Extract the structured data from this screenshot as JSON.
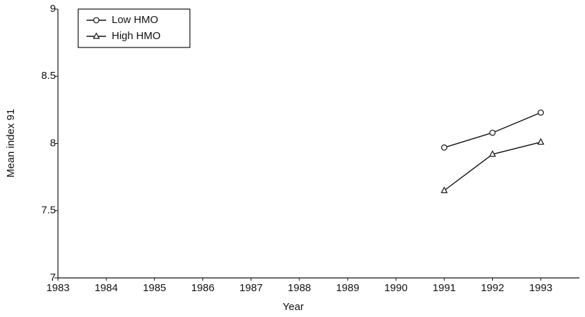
{
  "chart_data": {
    "type": "line",
    "x_label": "Year",
    "y_label": "Mean index 91",
    "x": [
      1991,
      1992,
      1993
    ],
    "series": [
      {
        "name": "Low HMO",
        "color": "#111111",
        "marker": "circle",
        "values": [
          7.97,
          8.08,
          8.23
        ]
      },
      {
        "name": "High HMO",
        "color": "#111111",
        "marker": "triangle",
        "values": [
          7.65,
          7.92,
          8.01
        ]
      }
    ],
    "xlim": [
      1983,
      1993.8
    ],
    "xticks": [
      1983,
      1984,
      1985,
      1986,
      1987,
      1988,
      1989,
      1990,
      1991,
      1992,
      1993
    ],
    "ylim": [
      7,
      9
    ],
    "yticks": [
      7,
      7.5,
      8,
      8.5,
      9
    ],
    "grid": false,
    "legend": "upper left"
  }
}
